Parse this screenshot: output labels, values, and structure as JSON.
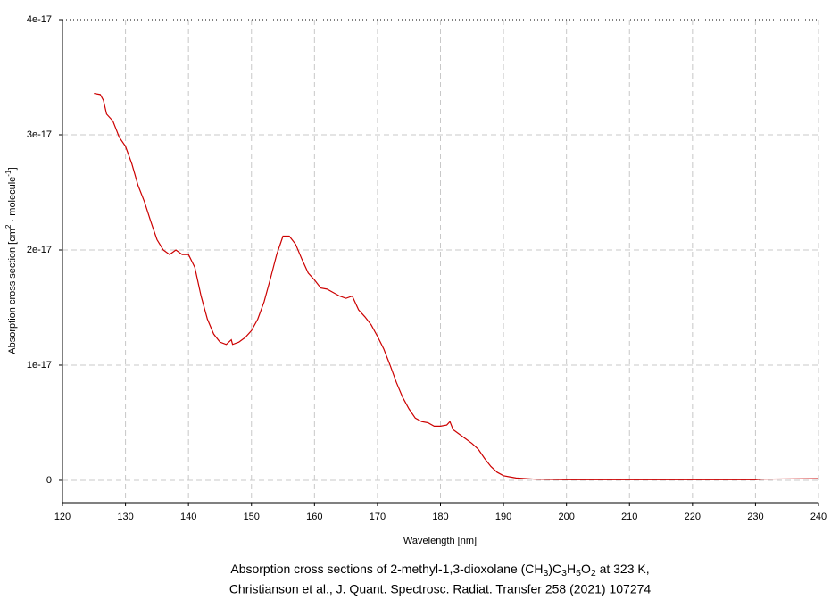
{
  "chart_data": {
    "type": "line",
    "title_lines": [
      "Absorption cross sections of 2-methyl-1,3-dioxolane (CH3)C3H5O2 at 323 K,",
      "Christianson et al., J. Quant. Spectrosc. Radiat. Transfer 258 (2021) 107274"
    ],
    "x_label": "Wavelength [nm]",
    "y_label": "Absorption cross section [cm2 · molecule-1]",
    "xlim": [
      120,
      240
    ],
    "xticks": [
      120,
      130,
      140,
      150,
      160,
      170,
      180,
      190,
      200,
      210,
      220,
      230,
      240
    ],
    "ylim": [
      -1.94e-18,
      4e-17
    ],
    "yticks": [
      0,
      1e-17,
      2e-17,
      3e-17,
      4e-17
    ],
    "grid": true,
    "series": [
      {
        "color": "#cc0000",
        "x": [
          125,
          126,
          126.5,
          127,
          128,
          129,
          130,
          131,
          132,
          133,
          134,
          135,
          136,
          137,
          138,
          139,
          140,
          141,
          142,
          143,
          144,
          145,
          146,
          146.8,
          147,
          148,
          149,
          150,
          151,
          152,
          153,
          154,
          155,
          156,
          157,
          158,
          159,
          160,
          161,
          162,
          163,
          164,
          165,
          166,
          167,
          168,
          169,
          170,
          171,
          172,
          173,
          174,
          175,
          176,
          177,
          178,
          179,
          180,
          181,
          181.5,
          182,
          183,
          184,
          185,
          186,
          187,
          188,
          189,
          190,
          191,
          192,
          195,
          200,
          210,
          220,
          230,
          231,
          240
        ],
        "values": [
          3.36e-17,
          3.35e-17,
          3.3e-17,
          3.18e-17,
          3.12e-17,
          2.98e-17,
          2.9e-17,
          2.75e-17,
          2.56e-17,
          2.42e-17,
          2.25e-17,
          2.09e-17,
          2e-17,
          1.96e-17,
          2e-17,
          1.96e-17,
          1.96e-17,
          1.85e-17,
          1.6e-17,
          1.4e-17,
          1.27e-17,
          1.2e-17,
          1.18e-17,
          1.22e-17,
          1.18e-17,
          1.2e-17,
          1.24e-17,
          1.3e-17,
          1.4e-17,
          1.55e-17,
          1.75e-17,
          1.96e-17,
          2.12e-17,
          2.12e-17,
          2.05e-17,
          1.92e-17,
          1.8e-17,
          1.74e-17,
          1.67e-17,
          1.66e-17,
          1.63e-17,
          1.6e-17,
          1.58e-17,
          1.6e-17,
          1.48e-17,
          1.42e-17,
          1.35e-17,
          1.25e-17,
          1.14e-17,
          1e-17,
          8.5e-18,
          7.2e-18,
          6.2e-18,
          5.4e-18,
          5.1e-18,
          5e-18,
          4.7e-18,
          4.7e-18,
          4.8e-18,
          5.1e-18,
          4.4e-18,
          4e-18,
          3.6e-18,
          3.2e-18,
          2.7e-18,
          1.9e-18,
          1.2e-18,
          7e-19,
          4e-19,
          3e-19,
          2e-19,
          1e-19,
          5e-20,
          5e-20,
          5e-20,
          5e-20,
          1e-19,
          1.5e-19
        ]
      }
    ]
  }
}
